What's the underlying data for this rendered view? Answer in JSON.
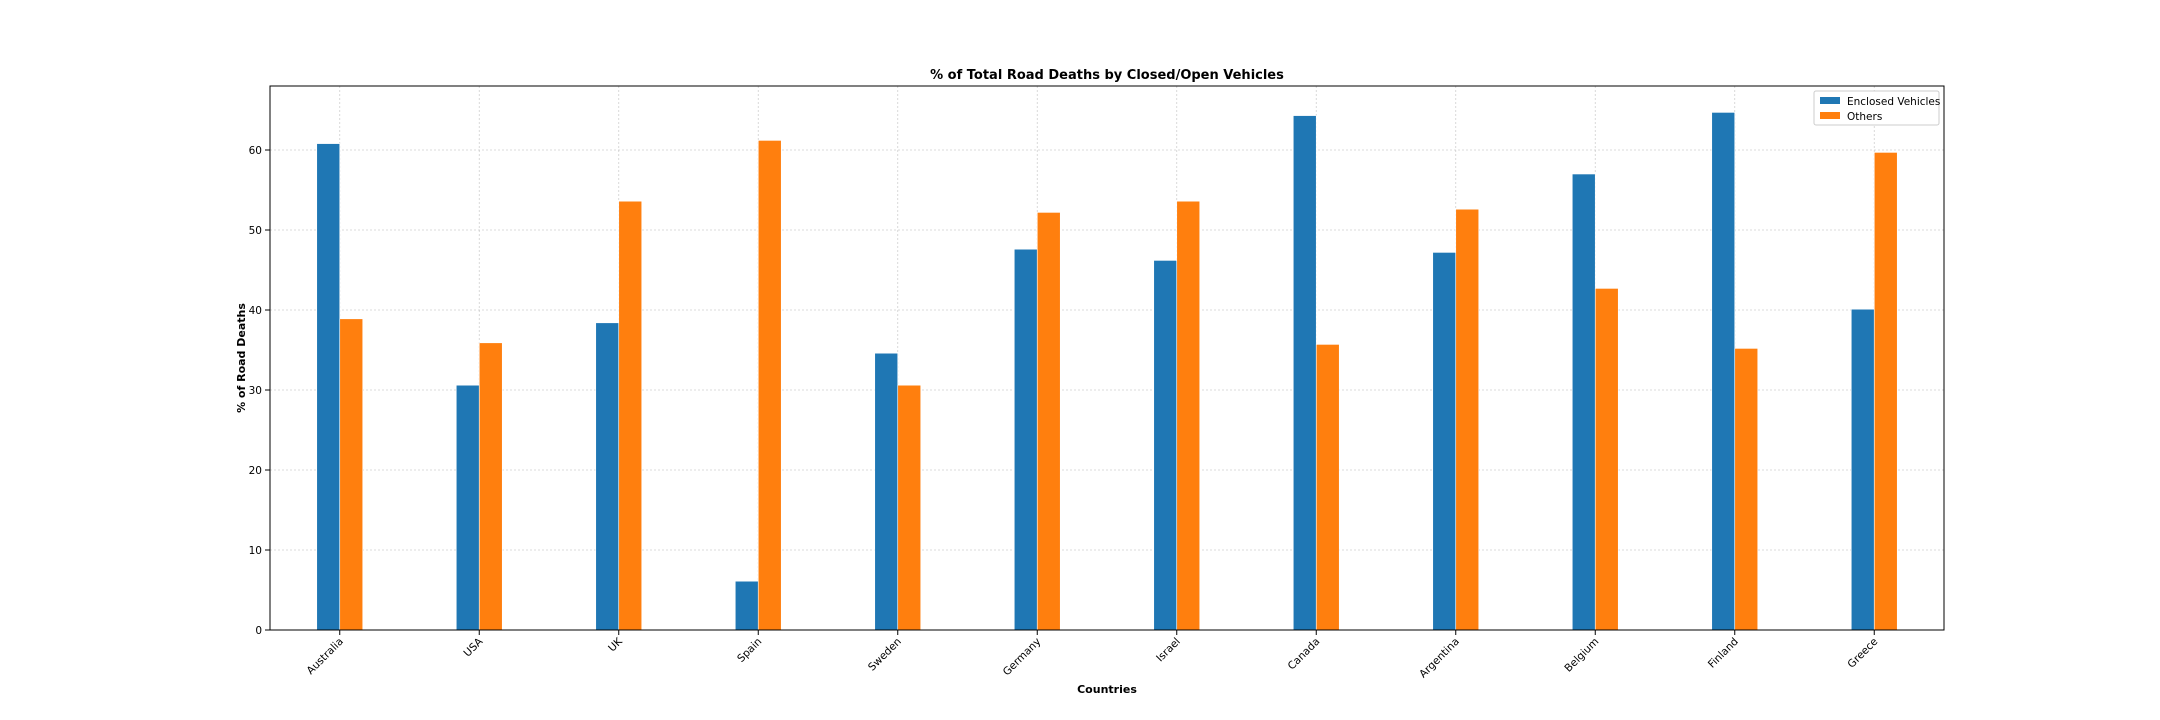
{
  "chart_data": {
    "type": "bar",
    "title": "% of Total Road Deaths by Closed/Open Vehicles",
    "xlabel": "Countries",
    "ylabel": "% of Road Deaths",
    "categories": [
      "Australia",
      "USA",
      "UK",
      "Spain",
      "Sweden",
      "Germany",
      "Israel",
      "Canada",
      "Argentina",
      "Belgium",
      "Finland",
      "Greece"
    ],
    "series": [
      {
        "name": "Enclosed Vehicles",
        "color": "#1f77b4",
        "values": [
          60.8,
          30.6,
          38.4,
          6.1,
          34.6,
          47.6,
          46.2,
          64.3,
          47.2,
          57.0,
          64.7,
          40.1
        ]
      },
      {
        "name": "Others",
        "color": "#ff7f0e",
        "values": [
          38.9,
          35.9,
          53.6,
          61.2,
          30.6,
          52.2,
          53.6,
          35.7,
          52.6,
          42.7,
          35.2,
          59.7
        ]
      }
    ],
    "yticks": [
      0,
      10,
      20,
      30,
      40,
      50,
      60
    ],
    "ylim": [
      0,
      68
    ],
    "grid": true,
    "legend_position": "top-right"
  }
}
